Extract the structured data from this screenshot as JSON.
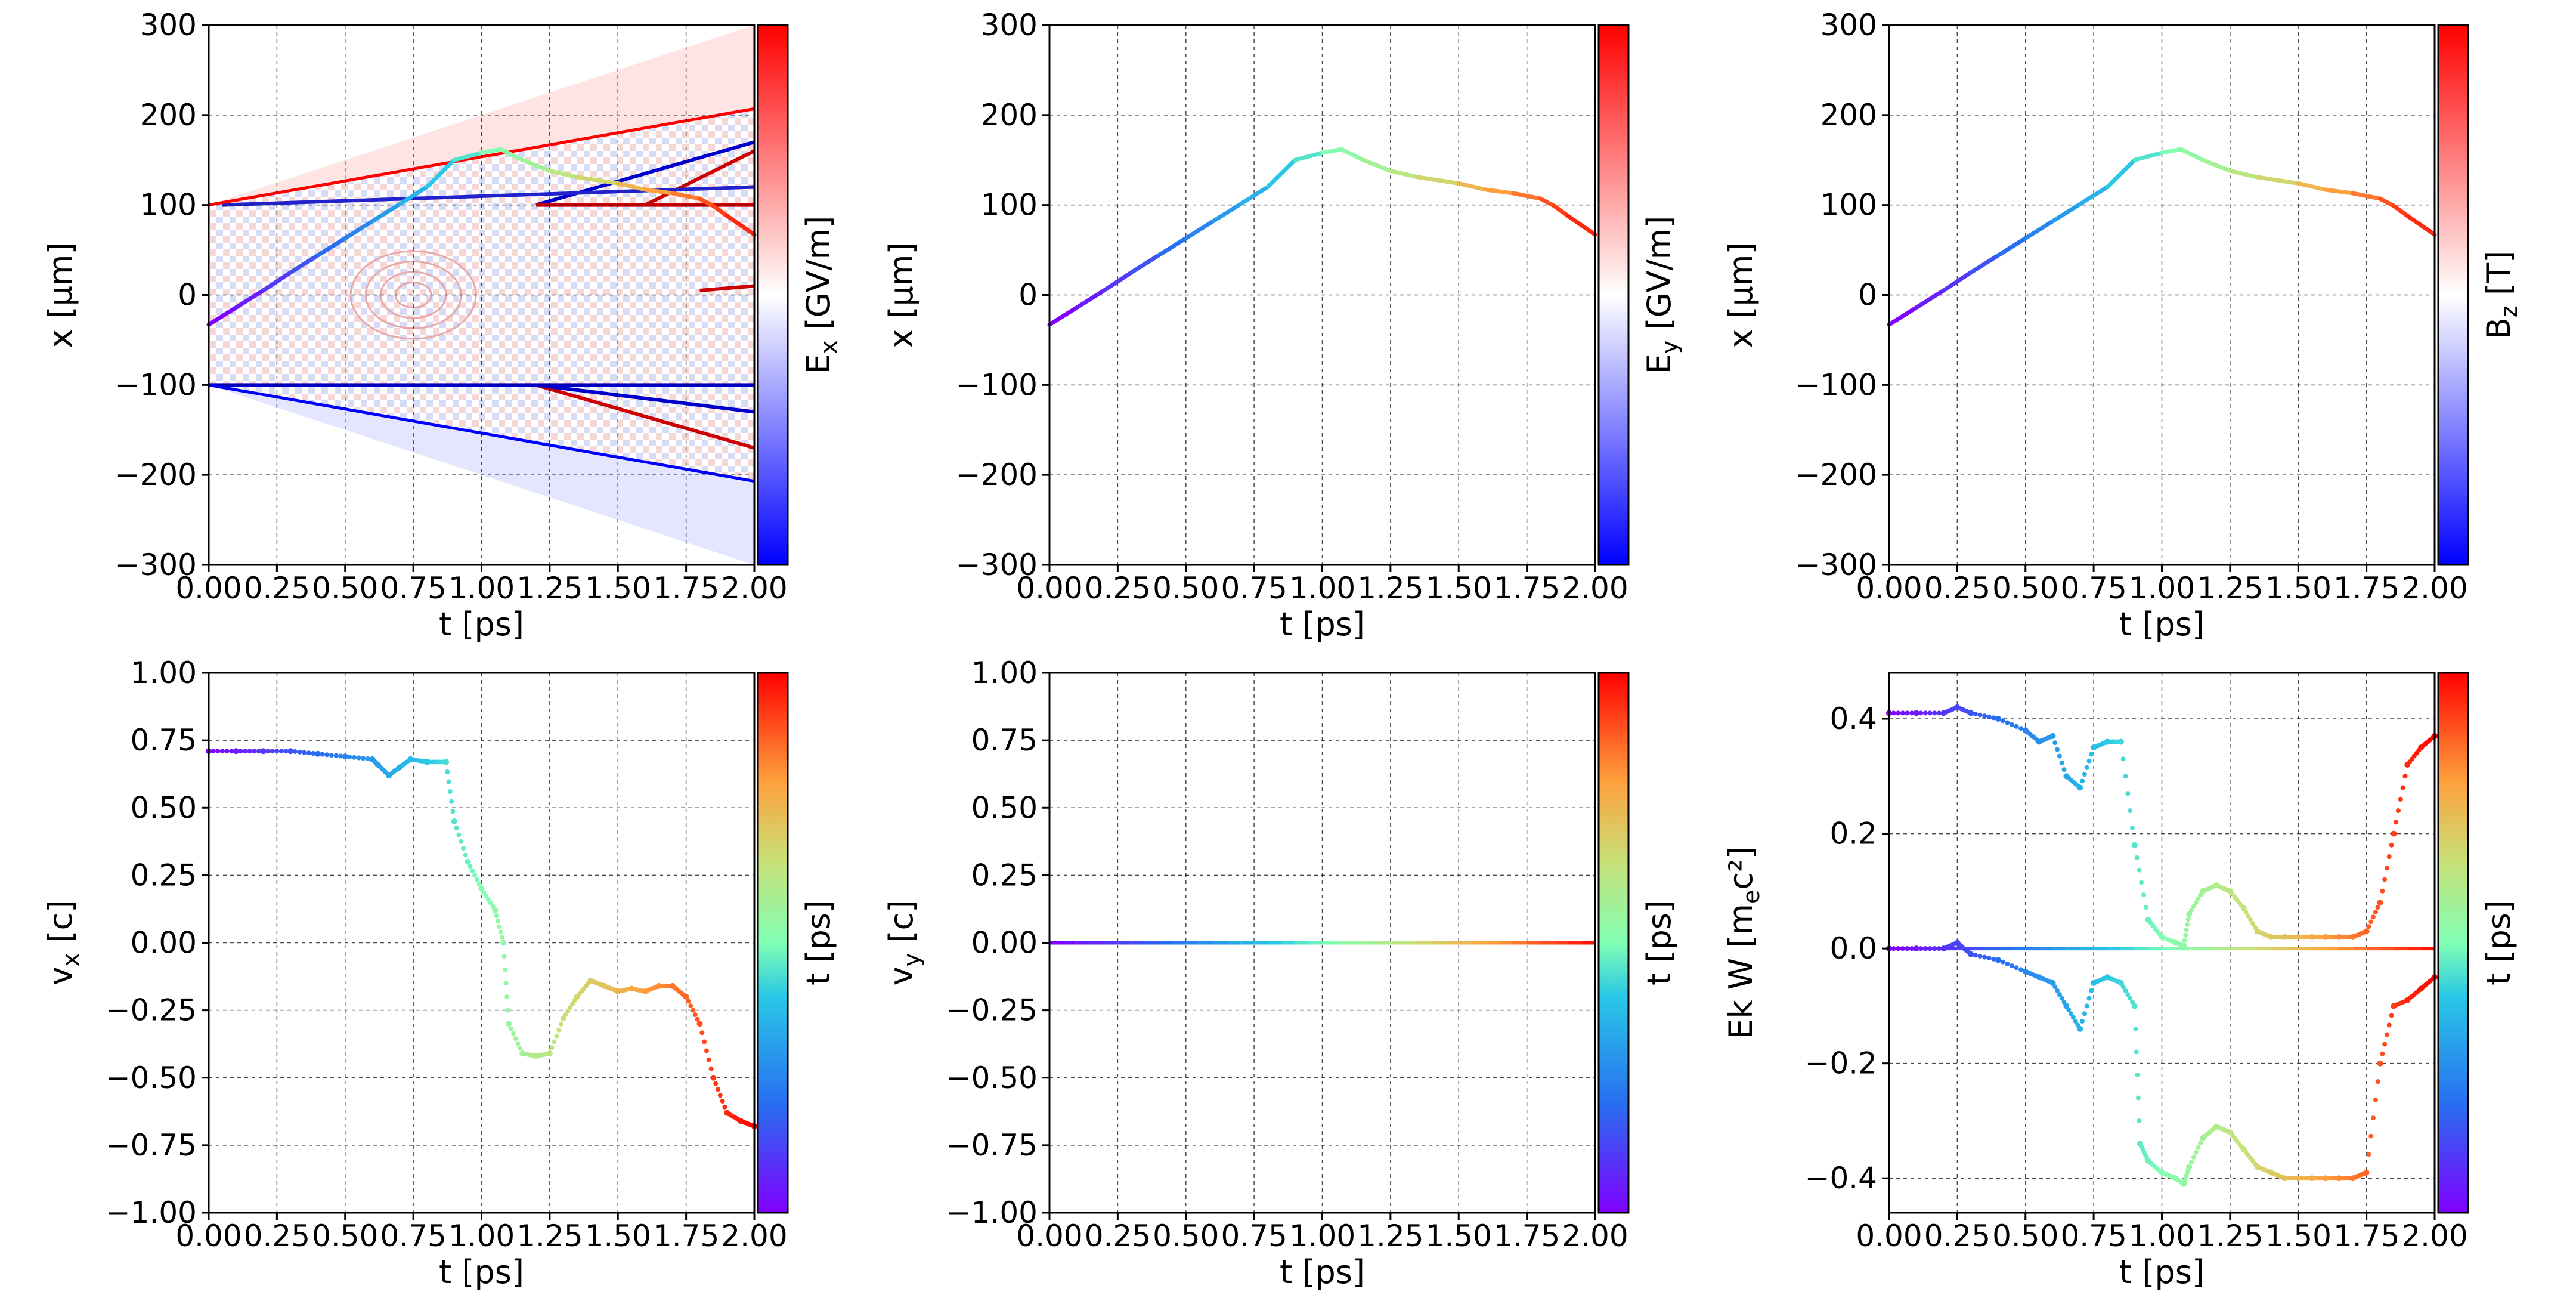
{
  "chart_data": [
    {
      "type": "heatmap",
      "xlabel": "t  [ps]",
      "ylabel": "x  [μm]",
      "xlim": [
        0,
        2
      ],
      "ylim": [
        -300,
        300
      ],
      "xticks": [
        "0.00",
        "0.25",
        "0.50",
        "0.75",
        "1.00",
        "1.25",
        "1.50",
        "1.75",
        "2.00"
      ],
      "yticks": [
        "300",
        "200",
        "100",
        "0",
        "−100",
        "−200",
        "−300"
      ],
      "colorbar": {
        "label_main": "E",
        "label_sub": "x",
        "label_unit": "[GV/m]",
        "cmap": "bwr"
      },
      "grid": true,
      "trajectory": {
        "t": [
          0,
          0.1,
          0.2,
          0.3,
          0.4,
          0.5,
          0.6,
          0.7,
          0.8,
          0.9,
          1.0,
          1.07,
          1.15,
          1.25,
          1.35,
          1.5,
          1.6,
          1.7,
          1.8,
          1.85,
          1.9,
          2.0
        ],
        "x": [
          -33,
          -14,
          5,
          25,
          44,
          63,
          82,
          101,
          120,
          150,
          158,
          162,
          150,
          138,
          131,
          124,
          117,
          113,
          107,
          99,
          88,
          67
        ],
        "cmap": "rainbow"
      },
      "lines": [
        {
          "name": "upper-boundary",
          "t": [
            0,
            2
          ],
          "x": [
            100,
            207
          ],
          "color": "#ff0000"
        },
        {
          "name": "lower-boundary",
          "t": [
            0,
            2
          ],
          "x": [
            -100,
            -207
          ],
          "color": "#0000ff"
        }
      ]
    },
    {
      "type": "line",
      "xlabel": "t  [ps]",
      "ylabel": "x  [μm]",
      "xlim": [
        0,
        2
      ],
      "ylim": [
        -300,
        300
      ],
      "xticks": [
        "0.00",
        "0.25",
        "0.50",
        "0.75",
        "1.00",
        "1.25",
        "1.50",
        "1.75",
        "2.00"
      ],
      "yticks": [
        "300",
        "200",
        "100",
        "0",
        "−100",
        "−200",
        "−300"
      ],
      "colorbar": {
        "label_main": "E",
        "label_sub": "y",
        "label_unit": "[GV/m]",
        "cmap": "bwr"
      },
      "grid": true,
      "trajectory": {
        "t": [
          0,
          0.1,
          0.2,
          0.3,
          0.4,
          0.5,
          0.6,
          0.7,
          0.8,
          0.9,
          1.0,
          1.07,
          1.15,
          1.25,
          1.35,
          1.5,
          1.6,
          1.7,
          1.8,
          1.85,
          1.9,
          2.0
        ],
        "x": [
          -33,
          -14,
          5,
          25,
          44,
          63,
          82,
          101,
          120,
          150,
          158,
          162,
          150,
          138,
          131,
          124,
          117,
          113,
          107,
          99,
          88,
          67
        ],
        "cmap": "rainbow"
      }
    },
    {
      "type": "line",
      "xlabel": "t  [ps]",
      "ylabel": "x  [μm]",
      "xlim": [
        0,
        2
      ],
      "ylim": [
        -300,
        300
      ],
      "xticks": [
        "0.00",
        "0.25",
        "0.50",
        "0.75",
        "1.00",
        "1.25",
        "1.50",
        "1.75",
        "2.00"
      ],
      "yticks": [
        "300",
        "200",
        "100",
        "0",
        "−100",
        "−200",
        "−300"
      ],
      "colorbar": {
        "label_main": "B",
        "label_sub": "z",
        "label_unit": "[T]",
        "cmap": "bwr"
      },
      "grid": true,
      "trajectory": {
        "t": [
          0,
          0.1,
          0.2,
          0.3,
          0.4,
          0.5,
          0.6,
          0.7,
          0.8,
          0.9,
          1.0,
          1.07,
          1.15,
          1.25,
          1.35,
          1.5,
          1.6,
          1.7,
          1.8,
          1.85,
          1.9,
          2.0
        ],
        "x": [
          -33,
          -14,
          5,
          25,
          44,
          63,
          82,
          101,
          120,
          150,
          158,
          162,
          150,
          138,
          131,
          124,
          117,
          113,
          107,
          99,
          88,
          67
        ],
        "cmap": "rainbow"
      }
    },
    {
      "type": "scatter",
      "xlabel": "t  [ps]",
      "ylabel": "v",
      "ylabel_sub": "x",
      "ylabel_unit": " [c]",
      "xlim": [
        0,
        2
      ],
      "ylim": [
        -1,
        1
      ],
      "xticks": [
        "0.00",
        "0.25",
        "0.50",
        "0.75",
        "1.00",
        "1.25",
        "1.50",
        "1.75",
        "2.00"
      ],
      "yticks": [
        "1.00",
        "0.75",
        "0.50",
        "0.25",
        "0.00",
        "−0.25",
        "−0.50",
        "−0.75",
        "−1.00"
      ],
      "colorbar": {
        "label_main": "t",
        "label_sub": "",
        "label_unit": "[ps]",
        "cmap": "rainbow"
      },
      "grid": true,
      "series": [
        {
          "t": [
            0,
            0.1,
            0.2,
            0.3,
            0.4,
            0.5,
            0.6,
            0.62,
            0.66,
            0.7,
            0.74,
            0.8,
            0.87,
            0.9,
            0.95,
            1.0,
            1.05,
            1.08,
            1.1,
            1.15,
            1.2,
            1.25,
            1.3,
            1.35,
            1.4,
            1.45,
            1.5,
            1.55,
            1.6,
            1.65,
            1.7,
            1.75,
            1.8,
            1.85,
            1.9,
            1.95,
            2.0
          ],
          "v": [
            0.71,
            0.71,
            0.71,
            0.71,
            0.7,
            0.69,
            0.68,
            0.66,
            0.62,
            0.65,
            0.68,
            0.67,
            0.67,
            0.45,
            0.3,
            0.2,
            0.12,
            0.0,
            -0.3,
            -0.41,
            -0.42,
            -0.41,
            -0.28,
            -0.2,
            -0.14,
            -0.16,
            -0.18,
            -0.17,
            -0.18,
            -0.16,
            -0.16,
            -0.2,
            -0.3,
            -0.5,
            -0.63,
            -0.66,
            -0.68
          ]
        }
      ]
    },
    {
      "type": "scatter",
      "xlabel": "t  [ps]",
      "ylabel": "v",
      "ylabel_sub": "y",
      "ylabel_unit": " [c]",
      "xlim": [
        0,
        2
      ],
      "ylim": [
        -1,
        1
      ],
      "xticks": [
        "0.00",
        "0.25",
        "0.50",
        "0.75",
        "1.00",
        "1.25",
        "1.50",
        "1.75",
        "2.00"
      ],
      "yticks": [
        "1.00",
        "0.75",
        "0.50",
        "0.25",
        "0.00",
        "−0.25",
        "−0.50",
        "−0.75",
        "−1.00"
      ],
      "colorbar": {
        "label_main": "t",
        "label_sub": "",
        "label_unit": "[ps]",
        "cmap": "rainbow"
      },
      "grid": true,
      "series": [
        {
          "t": [
            0,
            2
          ],
          "v": [
            0,
            0
          ]
        }
      ]
    },
    {
      "type": "scatter",
      "xlabel": "t  [ps]",
      "ylabel": "Ek W [m",
      "ylabel_sub": "e",
      "ylabel_unit": "c²]",
      "xlim": [
        0,
        2
      ],
      "ylim": [
        -0.46,
        0.48
      ],
      "xticks": [
        "0.00",
        "0.25",
        "0.50",
        "0.75",
        "1.00",
        "1.25",
        "1.50",
        "1.75",
        "2.00"
      ],
      "ytick_values": [
        0.4,
        0.2,
        0.0,
        -0.2,
        -0.4
      ],
      "yticks": [
        "0.4",
        "0.2",
        "0.0",
        "−0.2",
        "−0.4"
      ],
      "colorbar": {
        "label_main": "t",
        "label_sub": "",
        "label_unit": "[ps]",
        "cmap": "rainbow"
      },
      "grid": true,
      "series": [
        {
          "name": "Ek",
          "t": [
            0,
            0.1,
            0.2,
            0.25,
            0.3,
            0.4,
            0.5,
            0.55,
            0.6,
            0.65,
            0.7,
            0.75,
            0.8,
            0.85,
            0.9,
            0.95,
            1.0,
            1.05,
            1.08,
            1.1,
            1.15,
            1.2,
            1.25,
            1.3,
            1.35,
            1.4,
            1.45,
            1.5,
            1.55,
            1.6,
            1.65,
            1.7,
            1.75,
            1.8,
            1.85,
            1.9,
            1.95,
            2.0
          ],
          "v": [
            0.41,
            0.41,
            0.41,
            0.42,
            0.41,
            0.4,
            0.38,
            0.36,
            0.37,
            0.3,
            0.28,
            0.35,
            0.36,
            0.36,
            0.18,
            0.05,
            0.02,
            0.01,
            0.005,
            0.06,
            0.1,
            0.11,
            0.1,
            0.07,
            0.03,
            0.02,
            0.02,
            0.02,
            0.02,
            0.02,
            0.02,
            0.02,
            0.03,
            0.08,
            0.2,
            0.32,
            0.35,
            0.37
          ]
        },
        {
          "name": "W",
          "t": [
            0,
            0.1,
            0.2,
            0.25,
            0.3,
            0.4,
            0.5,
            0.55,
            0.6,
            0.65,
            0.7,
            0.75,
            0.8,
            0.85,
            0.9,
            0.92,
            0.95,
            1.0,
            1.05,
            1.08,
            1.1,
            1.15,
            1.2,
            1.25,
            1.3,
            1.35,
            1.4,
            1.45,
            1.5,
            1.55,
            1.6,
            1.65,
            1.7,
            1.75,
            1.8,
            1.85,
            1.9,
            1.95,
            2.0
          ],
          "v": [
            0.0,
            0.0,
            0.0,
            0.01,
            -0.01,
            -0.02,
            -0.04,
            -0.05,
            -0.06,
            -0.1,
            -0.14,
            -0.06,
            -0.05,
            -0.06,
            -0.1,
            -0.34,
            -0.37,
            -0.39,
            -0.4,
            -0.41,
            -0.38,
            -0.33,
            -0.31,
            -0.32,
            -0.35,
            -0.38,
            -0.39,
            -0.4,
            -0.4,
            -0.4,
            -0.4,
            -0.4,
            -0.4,
            -0.39,
            -0.2,
            -0.1,
            -0.09,
            -0.07,
            -0.05
          ]
        },
        {
          "name": "zero-line",
          "t": [
            0,
            2
          ],
          "v": [
            0,
            0
          ]
        }
      ]
    }
  ]
}
